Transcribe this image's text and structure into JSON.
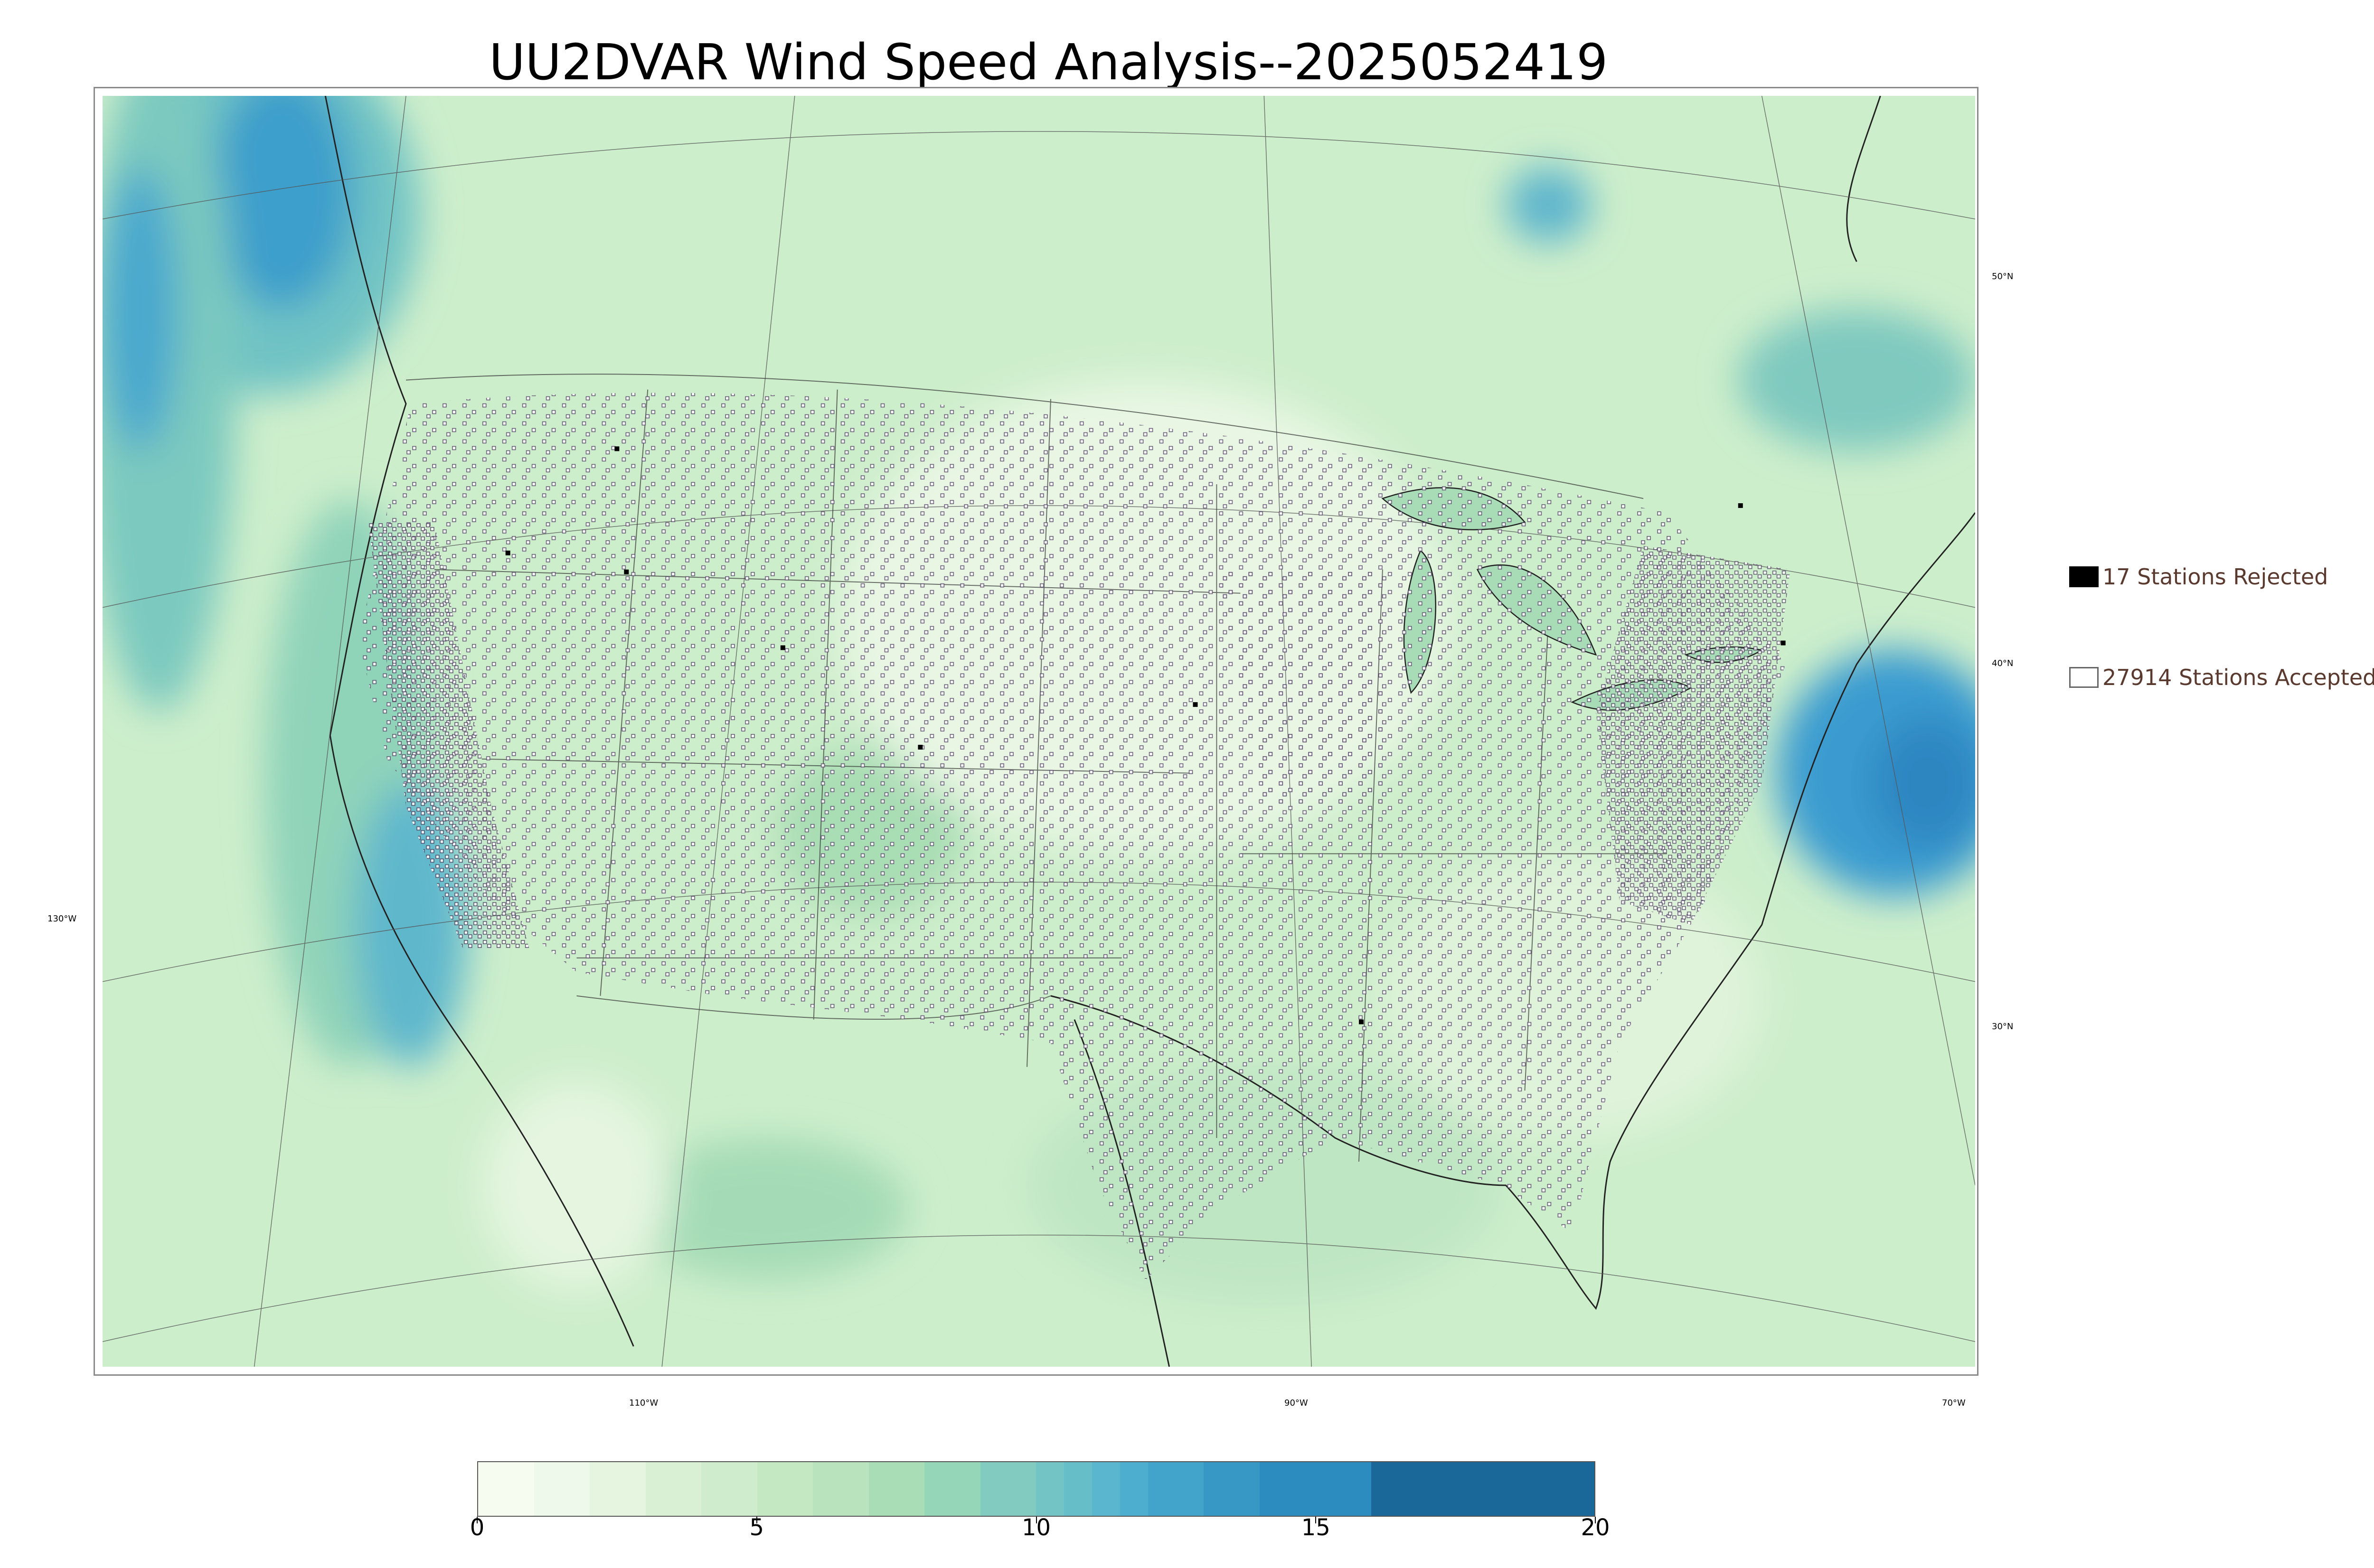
{
  "title": "UU2DVAR Wind Speed Analysis--2025052419",
  "graticule_labels": {
    "lat_50": "50°N",
    "lat_40": "40°N",
    "lat_30": "30°N",
    "lon_130": "130°W",
    "lon_110": "110°W",
    "lon_90": "90°W",
    "lon_70": "70°W"
  },
  "legend": {
    "rejected_label": "17 Stations Rejected",
    "accepted_label": "27914 Stations Accepted"
  },
  "colorbar": {
    "ticks": [
      "0",
      "5",
      "10",
      "15",
      "20"
    ],
    "min": 0,
    "max": 20,
    "boundaries": [
      0,
      1,
      2,
      3,
      4,
      5,
      6,
      7,
      8,
      9,
      10,
      10.5,
      11,
      11.5,
      12,
      13,
      14,
      16,
      20
    ],
    "colors": [
      "#f7fcf0",
      "#eef9eb",
      "#e5f5e0",
      "#daf0d4",
      "#cfeccc",
      "#c4e8c2",
      "#b8e3bd",
      "#a8ddb5",
      "#95d5b8",
      "#82cbc0",
      "#72c5c4",
      "#66bfc8",
      "#5ab6cf",
      "#4eaed0",
      "#42a3cb",
      "#3898c5",
      "#2c8cbf",
      "#1a6799"
    ]
  },
  "colors": {
    "land_base": "#d5efcf",
    "ocean_base": "#c7ebc4",
    "strong_wind": "#3a9cc9",
    "station_marker": "#5b4d6d",
    "boundary_line": "#333333"
  }
}
